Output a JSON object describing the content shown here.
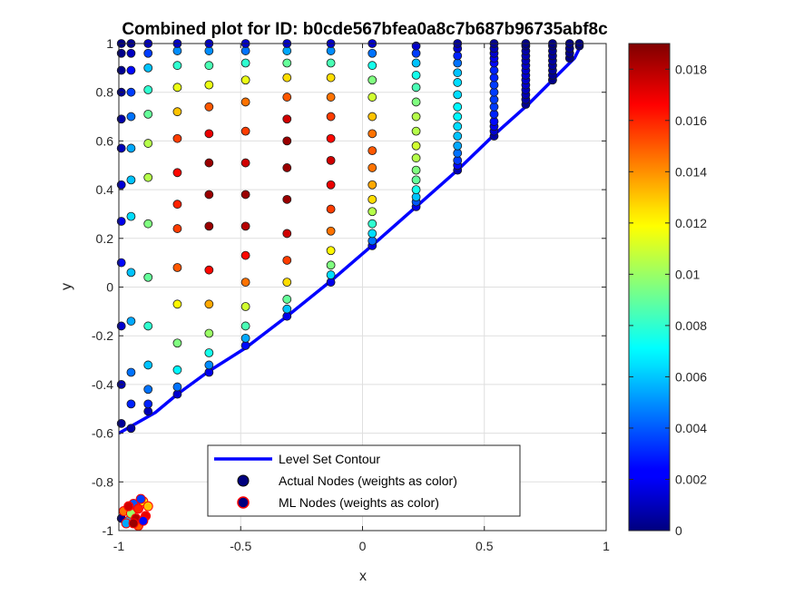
{
  "chart_data": {
    "type": "scatter",
    "title": "Combined plot for ID: b0cde567bfea0a8c7b687b96735abf8c",
    "xlabel": "x",
    "ylabel": "y",
    "xlim": [
      -1,
      1
    ],
    "ylim": [
      -1,
      1
    ],
    "x_ticks": [
      "-1",
      "-0.5",
      "0",
      "0.5",
      "1"
    ],
    "y_ticks": [
      "-1",
      "-0.8",
      "-0.6",
      "-0.4",
      "-0.2",
      "0",
      "0.2",
      "0.4",
      "0.6",
      "0.8",
      "1"
    ],
    "grid": true,
    "legend_placement": "bottom-center",
    "legend": [
      "Level Set Contour",
      "Actual Nodes (weights as color)",
      "ML Nodes (weights as color)"
    ],
    "colorbar": {
      "colormap": "jet",
      "min": 0,
      "max": 0.019,
      "ticks": [
        "0",
        "0.002",
        "0.004",
        "0.006",
        "0.008",
        "0.01",
        "0.012",
        "0.014",
        "0.016",
        "0.018"
      ]
    },
    "level_set_contour": {
      "color": "#0000ff",
      "points": [
        [
          -1,
          -0.6
        ],
        [
          -0.85,
          -0.515
        ],
        [
          -0.76,
          -0.44
        ],
        [
          -0.63,
          -0.345
        ],
        [
          -0.48,
          -0.25
        ],
        [
          -0.31,
          -0.12
        ],
        [
          -0.13,
          0.025
        ],
        [
          0.05,
          0.18
        ],
        [
          0.22,
          0.33
        ],
        [
          0.39,
          0.48
        ],
        [
          0.54,
          0.625
        ],
        [
          0.68,
          0.75
        ],
        [
          0.78,
          0.85
        ],
        [
          0.87,
          0.94
        ],
        [
          0.9,
          1
        ]
      ]
    },
    "actual_nodes": [
      {
        "x": -0.99,
        "y": -0.95,
        "w": 0.0004
      },
      {
        "x": -0.99,
        "y": -0.56,
        "w": 0.0005
      },
      {
        "x": -0.99,
        "y": -0.4,
        "w": 0.001
      },
      {
        "x": -0.99,
        "y": -0.16,
        "w": 0.0015
      },
      {
        "x": -0.99,
        "y": 0.1,
        "w": 0.0025
      },
      {
        "x": -0.99,
        "y": 0.27,
        "w": 0.002
      },
      {
        "x": -0.99,
        "y": 0.42,
        "w": 0.0016
      },
      {
        "x": -0.99,
        "y": 0.57,
        "w": 0.0011
      },
      {
        "x": -0.99,
        "y": 0.69,
        "w": 0.0008
      },
      {
        "x": -0.99,
        "y": 0.8,
        "w": 0.0005
      },
      {
        "x": -0.99,
        "y": 0.89,
        "w": 0.0003
      },
      {
        "x": -0.99,
        "y": 0.96,
        "w": 0.0002
      },
      {
        "x": -0.99,
        "y": 1.0,
        "w": 0.0001
      },
      {
        "x": -0.95,
        "y": -0.58,
        "w": 0.0008
      },
      {
        "x": -0.95,
        "y": -0.48,
        "w": 0.003
      },
      {
        "x": -0.95,
        "y": -0.35,
        "w": 0.0045
      },
      {
        "x": -0.95,
        "y": -0.14,
        "w": 0.0055
      },
      {
        "x": -0.95,
        "y": 0.06,
        "w": 0.006
      },
      {
        "x": -0.95,
        "y": 0.29,
        "w": 0.0065
      },
      {
        "x": -0.95,
        "y": 0.44,
        "w": 0.006
      },
      {
        "x": -0.95,
        "y": 0.57,
        "w": 0.0055
      },
      {
        "x": -0.95,
        "y": 0.7,
        "w": 0.0045
      },
      {
        "x": -0.95,
        "y": 0.8,
        "w": 0.0035
      },
      {
        "x": -0.95,
        "y": 0.89,
        "w": 0.0025
      },
      {
        "x": -0.95,
        "y": 0.96,
        "w": 0.0012
      },
      {
        "x": -0.95,
        "y": 1.0,
        "w": 0.0004
      },
      {
        "x": -0.88,
        "y": -0.51,
        "w": 0.001
      },
      {
        "x": -0.88,
        "y": -0.48,
        "w": 0.003
      },
      {
        "x": -0.88,
        "y": -0.42,
        "w": 0.0045
      },
      {
        "x": -0.88,
        "y": -0.32,
        "w": 0.006
      },
      {
        "x": -0.88,
        "y": -0.16,
        "w": 0.008
      },
      {
        "x": -0.88,
        "y": 0.04,
        "w": 0.009
      },
      {
        "x": -0.88,
        "y": 0.26,
        "w": 0.0095
      },
      {
        "x": -0.88,
        "y": 0.45,
        "w": 0.0105
      },
      {
        "x": -0.88,
        "y": 0.59,
        "w": 0.0105
      },
      {
        "x": -0.88,
        "y": 0.71,
        "w": 0.009
      },
      {
        "x": -0.88,
        "y": 0.81,
        "w": 0.008
      },
      {
        "x": -0.88,
        "y": 0.9,
        "w": 0.006
      },
      {
        "x": -0.88,
        "y": 0.96,
        "w": 0.0035
      },
      {
        "x": -0.88,
        "y": 1.0,
        "w": 0.0012
      },
      {
        "x": -0.76,
        "y": -0.44,
        "w": 0.0015
      },
      {
        "x": -0.76,
        "y": -0.41,
        "w": 0.0045
      },
      {
        "x": -0.76,
        "y": -0.34,
        "w": 0.007
      },
      {
        "x": -0.76,
        "y": -0.23,
        "w": 0.0095
      },
      {
        "x": -0.76,
        "y": -0.07,
        "w": 0.012
      },
      {
        "x": -0.76,
        "y": 0.08,
        "w": 0.015
      },
      {
        "x": -0.76,
        "y": 0.24,
        "w": 0.0155
      },
      {
        "x": -0.76,
        "y": 0.34,
        "w": 0.016
      },
      {
        "x": -0.76,
        "y": 0.47,
        "w": 0.0165
      },
      {
        "x": -0.76,
        "y": 0.61,
        "w": 0.0155
      },
      {
        "x": -0.76,
        "y": 0.72,
        "w": 0.013
      },
      {
        "x": -0.76,
        "y": 0.82,
        "w": 0.0115
      },
      {
        "x": -0.76,
        "y": 0.91,
        "w": 0.008
      },
      {
        "x": -0.76,
        "y": 0.97,
        "w": 0.005
      },
      {
        "x": -0.76,
        "y": 1.0,
        "w": 0.0015
      },
      {
        "x": -0.63,
        "y": -0.35,
        "w": 0.002
      },
      {
        "x": -0.63,
        "y": -0.32,
        "w": 0.005
      },
      {
        "x": -0.63,
        "y": -0.27,
        "w": 0.0075
      },
      {
        "x": -0.63,
        "y": -0.19,
        "w": 0.01
      },
      {
        "x": -0.63,
        "y": -0.07,
        "w": 0.0135
      },
      {
        "x": -0.63,
        "y": 0.07,
        "w": 0.0165
      },
      {
        "x": -0.63,
        "y": 0.25,
        "w": 0.0185
      },
      {
        "x": -0.63,
        "y": 0.38,
        "w": 0.0185
      },
      {
        "x": -0.63,
        "y": 0.51,
        "w": 0.0185
      },
      {
        "x": -0.63,
        "y": 0.63,
        "w": 0.017
      },
      {
        "x": -0.63,
        "y": 0.74,
        "w": 0.015
      },
      {
        "x": -0.63,
        "y": 0.83,
        "w": 0.0115
      },
      {
        "x": -0.63,
        "y": 0.91,
        "w": 0.0085
      },
      {
        "x": -0.63,
        "y": 0.97,
        "w": 0.005
      },
      {
        "x": -0.63,
        "y": 1.0,
        "w": 0.0015
      },
      {
        "x": -0.48,
        "y": -0.24,
        "w": 0.0025
      },
      {
        "x": -0.48,
        "y": -0.21,
        "w": 0.0055
      },
      {
        "x": -0.48,
        "y": -0.16,
        "w": 0.0085
      },
      {
        "x": -0.48,
        "y": -0.08,
        "w": 0.011
      },
      {
        "x": -0.48,
        "y": 0.02,
        "w": 0.0145
      },
      {
        "x": -0.48,
        "y": 0.13,
        "w": 0.0165
      },
      {
        "x": -0.48,
        "y": 0.25,
        "w": 0.018
      },
      {
        "x": -0.48,
        "y": 0.38,
        "w": 0.0185
      },
      {
        "x": -0.48,
        "y": 0.51,
        "w": 0.0175
      },
      {
        "x": -0.48,
        "y": 0.64,
        "w": 0.0155
      },
      {
        "x": -0.48,
        "y": 0.76,
        "w": 0.0145
      },
      {
        "x": -0.48,
        "y": 0.85,
        "w": 0.0115
      },
      {
        "x": -0.48,
        "y": 0.92,
        "w": 0.008
      },
      {
        "x": -0.48,
        "y": 0.97,
        "w": 0.0045
      },
      {
        "x": -0.48,
        "y": 1.0,
        "w": 0.0015
      },
      {
        "x": -0.31,
        "y": -0.12,
        "w": 0.002
      },
      {
        "x": -0.31,
        "y": -0.09,
        "w": 0.006
      },
      {
        "x": -0.31,
        "y": -0.05,
        "w": 0.009
      },
      {
        "x": -0.31,
        "y": 0.02,
        "w": 0.0125
      },
      {
        "x": -0.31,
        "y": 0.11,
        "w": 0.0155
      },
      {
        "x": -0.31,
        "y": 0.22,
        "w": 0.0175
      },
      {
        "x": -0.31,
        "y": 0.36,
        "w": 0.0185
      },
      {
        "x": -0.31,
        "y": 0.49,
        "w": 0.0185
      },
      {
        "x": -0.31,
        "y": 0.6,
        "w": 0.0185
      },
      {
        "x": -0.31,
        "y": 0.69,
        "w": 0.0175
      },
      {
        "x": -0.31,
        "y": 0.78,
        "w": 0.015
      },
      {
        "x": -0.31,
        "y": 0.86,
        "w": 0.0125
      },
      {
        "x": -0.31,
        "y": 0.92,
        "w": 0.009
      },
      {
        "x": -0.31,
        "y": 0.97,
        "w": 0.0055
      },
      {
        "x": -0.31,
        "y": 1.0,
        "w": 0.0015
      },
      {
        "x": -0.13,
        "y": 0.02,
        "w": 0.002
      },
      {
        "x": -0.13,
        "y": 0.05,
        "w": 0.0065
      },
      {
        "x": -0.13,
        "y": 0.09,
        "w": 0.0095
      },
      {
        "x": -0.13,
        "y": 0.15,
        "w": 0.012
      },
      {
        "x": -0.13,
        "y": 0.23,
        "w": 0.0145
      },
      {
        "x": -0.13,
        "y": 0.32,
        "w": 0.0155
      },
      {
        "x": -0.13,
        "y": 0.42,
        "w": 0.017
      },
      {
        "x": -0.13,
        "y": 0.52,
        "w": 0.0175
      },
      {
        "x": -0.13,
        "y": 0.61,
        "w": 0.0165
      },
      {
        "x": -0.13,
        "y": 0.7,
        "w": 0.0155
      },
      {
        "x": -0.13,
        "y": 0.78,
        "w": 0.0145
      },
      {
        "x": -0.13,
        "y": 0.86,
        "w": 0.0125
      },
      {
        "x": -0.13,
        "y": 0.92,
        "w": 0.0085
      },
      {
        "x": -0.13,
        "y": 0.97,
        "w": 0.005
      },
      {
        "x": -0.13,
        "y": 1.0,
        "w": 0.0015
      },
      {
        "x": 0.04,
        "y": 0.17,
        "w": 0.002
      },
      {
        "x": 0.04,
        "y": 0.19,
        "w": 0.0045
      },
      {
        "x": 0.04,
        "y": 0.22,
        "w": 0.0065
      },
      {
        "x": 0.04,
        "y": 0.26,
        "w": 0.008
      },
      {
        "x": 0.04,
        "y": 0.31,
        "w": 0.0105
      },
      {
        "x": 0.04,
        "y": 0.36,
        "w": 0.0125
      },
      {
        "x": 0.04,
        "y": 0.42,
        "w": 0.0135
      },
      {
        "x": 0.04,
        "y": 0.49,
        "w": 0.0145
      },
      {
        "x": 0.04,
        "y": 0.56,
        "w": 0.015
      },
      {
        "x": 0.04,
        "y": 0.63,
        "w": 0.0145
      },
      {
        "x": 0.04,
        "y": 0.7,
        "w": 0.013
      },
      {
        "x": 0.04,
        "y": 0.78,
        "w": 0.011
      },
      {
        "x": 0.04,
        "y": 0.85,
        "w": 0.0095
      },
      {
        "x": 0.04,
        "y": 0.91,
        "w": 0.0075
      },
      {
        "x": 0.04,
        "y": 0.96,
        "w": 0.0045
      },
      {
        "x": 0.04,
        "y": 1.0,
        "w": 0.0015
      },
      {
        "x": 0.22,
        "y": 0.33,
        "w": 0.002
      },
      {
        "x": 0.22,
        "y": 0.35,
        "w": 0.004
      },
      {
        "x": 0.22,
        "y": 0.37,
        "w": 0.006
      },
      {
        "x": 0.22,
        "y": 0.4,
        "w": 0.0075
      },
      {
        "x": 0.22,
        "y": 0.44,
        "w": 0.009
      },
      {
        "x": 0.22,
        "y": 0.48,
        "w": 0.0095
      },
      {
        "x": 0.22,
        "y": 0.53,
        "w": 0.0105
      },
      {
        "x": 0.22,
        "y": 0.58,
        "w": 0.011
      },
      {
        "x": 0.22,
        "y": 0.64,
        "w": 0.0105
      },
      {
        "x": 0.22,
        "y": 0.7,
        "w": 0.0105
      },
      {
        "x": 0.22,
        "y": 0.76,
        "w": 0.0095
      },
      {
        "x": 0.22,
        "y": 0.82,
        "w": 0.0085
      },
      {
        "x": 0.22,
        "y": 0.87,
        "w": 0.0075
      },
      {
        "x": 0.22,
        "y": 0.92,
        "w": 0.006
      },
      {
        "x": 0.22,
        "y": 0.96,
        "w": 0.0035
      },
      {
        "x": 0.22,
        "y": 0.99,
        "w": 0.0015
      },
      {
        "x": 0.39,
        "y": 0.48,
        "w": 0.001
      },
      {
        "x": 0.39,
        "y": 0.5,
        "w": 0.0025
      },
      {
        "x": 0.39,
        "y": 0.52,
        "w": 0.0035
      },
      {
        "x": 0.39,
        "y": 0.55,
        "w": 0.0045
      },
      {
        "x": 0.39,
        "y": 0.58,
        "w": 0.0055
      },
      {
        "x": 0.39,
        "y": 0.62,
        "w": 0.006
      },
      {
        "x": 0.39,
        "y": 0.66,
        "w": 0.0065
      },
      {
        "x": 0.39,
        "y": 0.7,
        "w": 0.007
      },
      {
        "x": 0.39,
        "y": 0.74,
        "w": 0.007
      },
      {
        "x": 0.39,
        "y": 0.79,
        "w": 0.0065
      },
      {
        "x": 0.39,
        "y": 0.84,
        "w": 0.0065
      },
      {
        "x": 0.39,
        "y": 0.88,
        "w": 0.006
      },
      {
        "x": 0.39,
        "y": 0.92,
        "w": 0.0045
      },
      {
        "x": 0.39,
        "y": 0.95,
        "w": 0.003
      },
      {
        "x": 0.39,
        "y": 0.98,
        "w": 0.0015
      },
      {
        "x": 0.39,
        "y": 1.0,
        "w": 0.0006
      },
      {
        "x": 0.54,
        "y": 0.62,
        "w": 0.0008
      },
      {
        "x": 0.54,
        "y": 0.64,
        "w": 0.0015
      },
      {
        "x": 0.54,
        "y": 0.66,
        "w": 0.002
      },
      {
        "x": 0.54,
        "y": 0.68,
        "w": 0.0025
      },
      {
        "x": 0.54,
        "y": 0.71,
        "w": 0.003
      },
      {
        "x": 0.54,
        "y": 0.74,
        "w": 0.0035
      },
      {
        "x": 0.54,
        "y": 0.77,
        "w": 0.0035
      },
      {
        "x": 0.54,
        "y": 0.8,
        "w": 0.0035
      },
      {
        "x": 0.54,
        "y": 0.83,
        "w": 0.0035
      },
      {
        "x": 0.54,
        "y": 0.86,
        "w": 0.003
      },
      {
        "x": 0.54,
        "y": 0.89,
        "w": 0.003
      },
      {
        "x": 0.54,
        "y": 0.92,
        "w": 0.0025
      },
      {
        "x": 0.54,
        "y": 0.94,
        "w": 0.002
      },
      {
        "x": 0.54,
        "y": 0.96,
        "w": 0.0015
      },
      {
        "x": 0.54,
        "y": 0.98,
        "w": 0.001
      },
      {
        "x": 0.54,
        "y": 1.0,
        "w": 0.0004
      },
      {
        "x": 0.67,
        "y": 0.75,
        "w": 0.0004
      },
      {
        "x": 0.67,
        "y": 0.77,
        "w": 0.0008
      },
      {
        "x": 0.67,
        "y": 0.79,
        "w": 0.001
      },
      {
        "x": 0.67,
        "y": 0.81,
        "w": 0.0012
      },
      {
        "x": 0.67,
        "y": 0.83,
        "w": 0.0014
      },
      {
        "x": 0.67,
        "y": 0.85,
        "w": 0.0015
      },
      {
        "x": 0.67,
        "y": 0.87,
        "w": 0.0015
      },
      {
        "x": 0.67,
        "y": 0.89,
        "w": 0.0015
      },
      {
        "x": 0.67,
        "y": 0.91,
        "w": 0.0014
      },
      {
        "x": 0.67,
        "y": 0.93,
        "w": 0.0012
      },
      {
        "x": 0.67,
        "y": 0.95,
        "w": 0.001
      },
      {
        "x": 0.67,
        "y": 0.97,
        "w": 0.0008
      },
      {
        "x": 0.67,
        "y": 0.99,
        "w": 0.0005
      },
      {
        "x": 0.67,
        "y": 1.0,
        "w": 0.0002
      },
      {
        "x": 0.78,
        "y": 0.85,
        "w": 0.0002
      },
      {
        "x": 0.78,
        "y": 0.87,
        "w": 0.0004
      },
      {
        "x": 0.78,
        "y": 0.89,
        "w": 0.0005
      },
      {
        "x": 0.78,
        "y": 0.91,
        "w": 0.0006
      },
      {
        "x": 0.78,
        "y": 0.93,
        "w": 0.0006
      },
      {
        "x": 0.78,
        "y": 0.95,
        "w": 0.0005
      },
      {
        "x": 0.78,
        "y": 0.97,
        "w": 0.0004
      },
      {
        "x": 0.78,
        "y": 0.99,
        "w": 0.0003
      },
      {
        "x": 0.78,
        "y": 1.0,
        "w": 0.0001
      },
      {
        "x": 0.85,
        "y": 0.94,
        "w": 0.0001
      },
      {
        "x": 0.85,
        "y": 0.96,
        "w": 0.0002
      },
      {
        "x": 0.85,
        "y": 0.98,
        "w": 0.0002
      },
      {
        "x": 0.85,
        "y": 1.0,
        "w": 0.0001
      },
      {
        "x": 0.89,
        "y": 0.99,
        "w": 0.0001
      },
      {
        "x": 0.89,
        "y": 1.0,
        "w": 0.0001
      }
    ],
    "ml_nodes": [
      {
        "x": -0.98,
        "y": -0.92,
        "w": 0.0145
      },
      {
        "x": -0.96,
        "y": -0.96,
        "w": 0.006
      },
      {
        "x": -0.95,
        "y": -0.93,
        "w": 0.01
      },
      {
        "x": -0.94,
        "y": -0.89,
        "w": 0.004
      },
      {
        "x": -0.93,
        "y": -0.95,
        "w": 0.018
      },
      {
        "x": -0.92,
        "y": -0.91,
        "w": 0.016
      },
      {
        "x": -0.92,
        "y": -0.98,
        "w": 0.015
      },
      {
        "x": -0.9,
        "y": -0.88,
        "w": 0.012
      },
      {
        "x": -0.89,
        "y": -0.94,
        "w": 0.017
      },
      {
        "x": -0.88,
        "y": -0.9,
        "w": 0.013
      },
      {
        "x": -0.91,
        "y": -0.87,
        "w": 0.0035
      },
      {
        "x": -0.96,
        "y": -0.9,
        "w": 0.0175
      },
      {
        "x": -0.97,
        "y": -0.97,
        "w": 0.0055
      },
      {
        "x": -0.9,
        "y": -0.96,
        "w": 0.0025
      },
      {
        "x": -0.94,
        "y": -0.97,
        "w": 0.0185
      }
    ]
  }
}
